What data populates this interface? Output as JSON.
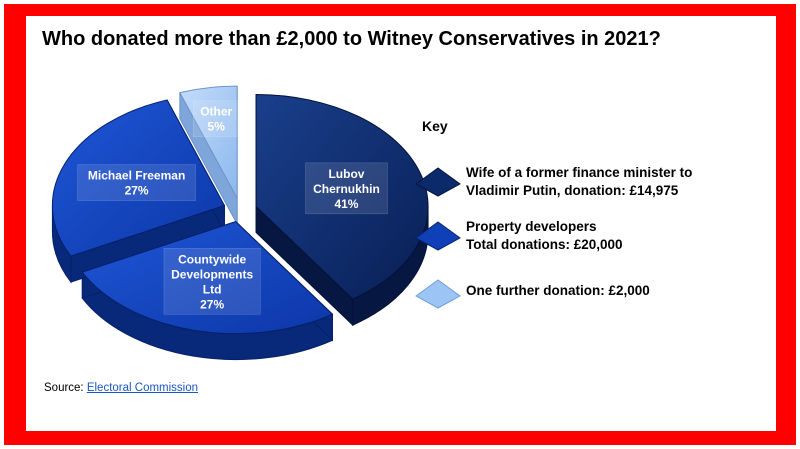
{
  "colors": {
    "frame": "#ff0000",
    "lubov": "#0a2a6c",
    "property": "#1040b8",
    "other": "#9cc4f4"
  },
  "chart_data": {
    "type": "pie",
    "title": "Who donated more than £2,000 to Witney Conservatives in 2021?",
    "slices": [
      {
        "label_lines": [
          "Lubov",
          "Chernukhin"
        ],
        "percent_label": "41%",
        "value": 14975,
        "group": "lubov"
      },
      {
        "label_lines": [
          "Countywide",
          "Developments",
          "Ltd"
        ],
        "percent_label": "27%",
        "value": 10000,
        "group": "property"
      },
      {
        "label_lines": [
          "Michael Freeman"
        ],
        "percent_label": "27%",
        "value": 10000,
        "group": "property"
      },
      {
        "label_lines": [
          "Other"
        ],
        "percent_label": "5%",
        "value": 2000,
        "group": "other"
      }
    ],
    "legend": {
      "title": "Key",
      "placement": "right",
      "items": [
        {
          "lines": [
            "Wife of a former finance minister to",
            "Vladimir Putin, donation: £14,975"
          ],
          "group": "lubov"
        },
        {
          "lines": [
            "Property developers",
            "Total donations: £20,000"
          ],
          "group": "property"
        },
        {
          "lines": [
            "One further donation: £2,000"
          ],
          "group": "other"
        }
      ]
    }
  },
  "source": {
    "prefix": "Source: ",
    "link_text": "Electoral Commission"
  }
}
